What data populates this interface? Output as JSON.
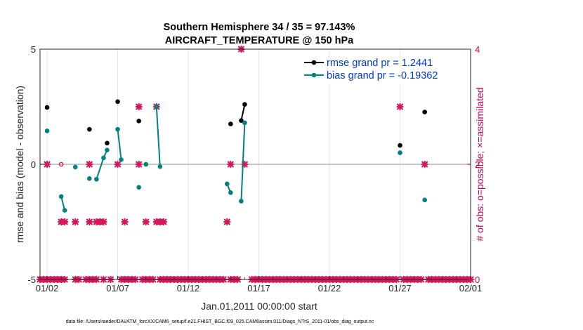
{
  "chart_data": {
    "type": "scatter",
    "title": "Southern Hemisphere 34 / 35 = 97.143%",
    "subtitle": "AIRCRAFT_TEMPERATURE @ 150 hPa",
    "xlabel": "Jan.01,2011 00:00:00 start",
    "ylabel": "rmse and bias (model - observation)",
    "y2label": "# of obs: o=possible; ×=assimilated",
    "xlim": [
      1.5,
      32.0
    ],
    "ylim": [
      -5,
      5
    ],
    "y2lim": [
      0,
      4
    ],
    "xticks": [
      2,
      7,
      12,
      17,
      22,
      27,
      32
    ],
    "xtick_labels": [
      "01/02",
      "01/07",
      "01/12",
      "01/17",
      "01/22",
      "01/27",
      "02/01"
    ],
    "yticks": [
      -5,
      0,
      5
    ],
    "ytick_labels": [
      "-5",
      "0",
      "5"
    ],
    "y2ticks": [
      0,
      2,
      4
    ],
    "y2tick_labels": [
      "0",
      "2",
      "4"
    ],
    "footer": "data file: /Users/raeder/DAI/ATM_forcXX/CAM6_setup/f.e21.FHIST_BGC.f09_025.CAM6assim.011/Diags_NTrS_2011-01/obs_diag_output.nc",
    "colors": {
      "rmse": "#000000",
      "bias": "#00807f",
      "obs": "#d6175c",
      "zero": "#b3b3b3",
      "legend_text": "#0039d6"
    },
    "series": [
      {
        "name": "rmse grand pr = 1.2441",
        "segments": [
          [
            [
              2.0,
              2.47
            ]
          ],
          [
            [
              5.0,
              1.52
            ]
          ],
          [
            [
              6.25,
              0.92
            ]
          ],
          [
            [
              7.0,
              2.72
            ]
          ],
          [
            [
              8.5,
              1.88
            ]
          ],
          [
            [
              15.0,
              1.75
            ]
          ],
          [
            [
              15.75,
              1.9
            ],
            [
              16.0,
              2.6
            ]
          ],
          [
            [
              27.0,
              0.82
            ]
          ],
          [
            [
              28.75,
              2.27
            ]
          ]
        ]
      },
      {
        "name": "bias grand pr = -0.19362",
        "segments": [
          [
            [
              2.0,
              1.45
            ]
          ],
          [
            [
              3.0,
              -1.4
            ],
            [
              3.25,
              -2.0
            ]
          ],
          [
            [
              4.0,
              -0.12
            ]
          ],
          [
            [
              5.0,
              -0.62
            ]
          ],
          [
            [
              5.5,
              -0.65
            ],
            [
              6.0,
              0.28
            ],
            [
              6.25,
              0.62
            ]
          ],
          [
            [
              7.0,
              1.52
            ],
            [
              7.25,
              0.2
            ]
          ],
          [
            [
              8.5,
              -1.0
            ]
          ],
          [
            [
              9.0,
              0.0
            ]
          ],
          [
            [
              9.75,
              2.5
            ],
            [
              10.0,
              -0.1
            ]
          ],
          [
            [
              14.75,
              -0.85
            ],
            [
              15.0,
              -1.23
            ]
          ],
          [
            [
              15.75,
              -1.6
            ],
            [
              16.0,
              1.8
            ]
          ],
          [
            [
              27.0,
              0.5
            ]
          ],
          [
            [
              28.75,
              -1.55
            ]
          ]
        ]
      }
    ],
    "obs_assimilated": [
      [
        2.0,
        2
      ],
      [
        3.0,
        1
      ],
      [
        3.25,
        1
      ],
      [
        4.0,
        1
      ],
      [
        5.0,
        2
      ],
      [
        5.0,
        1
      ],
      [
        5.5,
        1
      ],
      [
        5.75,
        1
      ],
      [
        6.0,
        1
      ],
      [
        7.0,
        2
      ],
      [
        7.5,
        1
      ],
      [
        8.5,
        3
      ],
      [
        8.5,
        2
      ],
      [
        9.0,
        1
      ],
      [
        9.75,
        3
      ],
      [
        9.75,
        1
      ],
      [
        10.0,
        1
      ],
      [
        10.25,
        1
      ],
      [
        14.75,
        1
      ],
      [
        15.0,
        2
      ],
      [
        15.75,
        4
      ],
      [
        16.0,
        2
      ],
      [
        27.0,
        3
      ],
      [
        28.75,
        2
      ]
    ],
    "obs_possible": [
      [
        3.0,
        2
      ]
    ],
    "obs_zero_x": [
      1.5,
      1.75,
      2.0,
      2.25,
      2.5,
      2.75,
      3.0,
      3.25,
      4.0,
      4.25,
      4.75,
      5.0,
      5.25,
      5.5,
      6.0,
      6.5,
      7.25,
      7.5,
      7.75,
      8.0,
      8.25,
      8.75,
      9.0,
      9.25,
      9.5,
      10.0,
      10.25,
      10.5,
      10.75,
      11.0,
      11.25,
      11.5,
      11.75,
      12.0,
      12.25,
      12.5,
      12.75,
      13.0,
      13.25,
      13.5,
      13.75,
      14.0,
      14.25,
      14.5,
      15.0,
      15.25,
      15.5,
      16.5,
      16.75,
      17.0,
      17.25,
      17.5,
      17.75,
      18.0,
      18.25,
      18.5,
      18.75,
      19.0,
      19.25,
      19.5,
      19.75,
      20.0,
      20.25,
      20.5,
      20.75,
      21.0,
      21.25,
      21.5,
      21.75,
      22.0,
      22.25,
      22.5,
      22.75,
      23.0,
      23.25,
      23.5,
      23.75,
      24.0,
      24.25,
      24.5,
      24.75,
      25.0,
      25.25,
      25.5,
      25.75,
      26.0,
      26.25,
      26.5,
      26.75,
      27.25,
      27.5,
      27.75,
      28.0,
      28.25,
      28.5,
      29.0,
      29.25,
      29.5,
      29.75,
      30.0,
      30.25,
      30.5,
      30.75,
      31.0,
      31.25,
      31.5,
      31.75,
      32.0
    ]
  }
}
